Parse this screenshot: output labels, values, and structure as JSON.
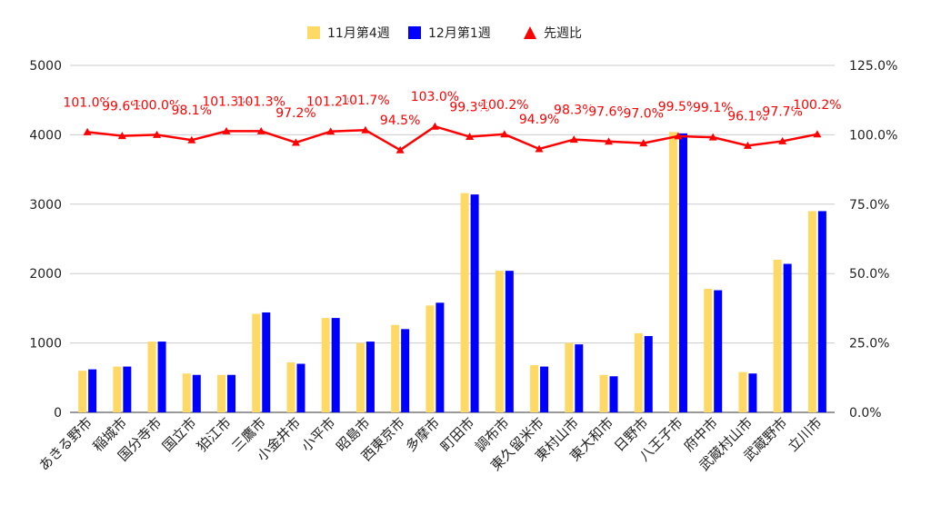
{
  "chart_data": {
    "type": "bar",
    "categories": [
      "あきる野市",
      "稲城市",
      "国分寺市",
      "国立市",
      "狛江市",
      "三鷹市",
      "小金井市",
      "小平市",
      "昭島市",
      "西東京市",
      "多摩市",
      "町田市",
      "調布市",
      "東久留米市",
      "東村山市",
      "東大和市",
      "日野市",
      "八王子市",
      "府中市",
      "武蔵村山市",
      "武蔵野市",
      "立川市"
    ],
    "series": [
      {
        "name": "11月第4週",
        "type": "bar",
        "axis": "left",
        "color": "#FFD966",
        "values": [
          600,
          660,
          1020,
          560,
          540,
          1420,
          720,
          1360,
          1000,
          1260,
          1540,
          3160,
          2040,
          680,
          1000,
          540,
          1140,
          4040,
          1780,
          580,
          2200,
          2900
        ]
      },
      {
        "name": "12月第1週",
        "type": "bar",
        "axis": "left",
        "color": "#0000FF",
        "values": [
          620,
          660,
          1020,
          540,
          540,
          1440,
          700,
          1360,
          1020,
          1200,
          1580,
          3140,
          2040,
          660,
          980,
          520,
          1100,
          4020,
          1760,
          560,
          2140,
          2900
        ]
      },
      {
        "name": "先週比",
        "type": "line",
        "axis": "right",
        "color": "#FF0000",
        "values": [
          101.0,
          99.6,
          100.0,
          98.1,
          101.3,
          101.3,
          97.2,
          101.2,
          101.7,
          94.5,
          103.0,
          99.3,
          100.2,
          94.9,
          98.3,
          97.6,
          97.0,
          99.5,
          99.1,
          96.1,
          97.7,
          100.2
        ],
        "labels": [
          "101.0%",
          "99.6%",
          "100.0%",
          "98.1%",
          "101.3%",
          "101.3%",
          "97.2%",
          "101.2%",
          "101.7%",
          "94.5%",
          "103.0%",
          "99.3%",
          "100.2%",
          "94.9%",
          "98.3%",
          "97.6%",
          "97.0%",
          "99.5%",
          "99.1%",
          "96.1%",
          "97.7%",
          "100.2%"
        ]
      }
    ],
    "y_left": {
      "min": 0,
      "max": 5000,
      "ticks": [
        "0",
        "1000",
        "2000",
        "3000",
        "4000",
        "5000"
      ]
    },
    "y_right": {
      "min": 0,
      "max": 125,
      "ticks": [
        "0.0%",
        "25.0%",
        "50.0%",
        "75.0%",
        "100.0%",
        "125.0%"
      ]
    },
    "legend_position": "top",
    "grid": true
  }
}
